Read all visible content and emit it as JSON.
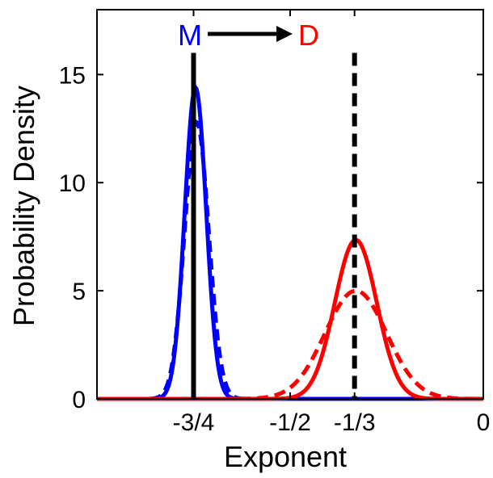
{
  "chart_data": {
    "type": "line",
    "xlabel": "Exponent",
    "ylabel": "Probability Density",
    "xlim": [
      -1.0,
      0.0
    ],
    "ylim": [
      0,
      18
    ],
    "x_ticks": [
      {
        "value": -0.75,
        "label": "-3/4"
      },
      {
        "value": -0.5,
        "label": "-1/2"
      },
      {
        "value": -0.3333,
        "label": "-1/3"
      },
      {
        "value": 0.0,
        "label": "0"
      }
    ],
    "y_ticks": [
      {
        "value": 0,
        "label": "0"
      },
      {
        "value": 5,
        "label": "5"
      },
      {
        "value": 10,
        "label": "10"
      },
      {
        "value": 15,
        "label": "15"
      }
    ],
    "grid": false,
    "annotation": {
      "from": "M",
      "to": "D",
      "from_color": "#0000ff",
      "to_color": "#ff0000"
    },
    "reference_lines": [
      {
        "x": -0.75,
        "style": "solid",
        "color": "#000000"
      },
      {
        "x": -0.3333,
        "style": "dashed",
        "color": "#000000"
      }
    ],
    "series": [
      {
        "color": "#0000ff",
        "style": "solid",
        "mean": -0.745,
        "peak": 14.4,
        "sd": 0.0277
      },
      {
        "color": "#0000ff",
        "style": "dashed",
        "mean": -0.742,
        "peak": 12.8,
        "sd": 0.0312
      },
      {
        "color": "#ff0000",
        "style": "solid",
        "mean": -0.33,
        "peak": 7.35,
        "sd": 0.0543
      },
      {
        "color": "#ff0000",
        "style": "dashed",
        "mean": -0.33,
        "peak": 5.0,
        "sd": 0.0798
      }
    ]
  }
}
